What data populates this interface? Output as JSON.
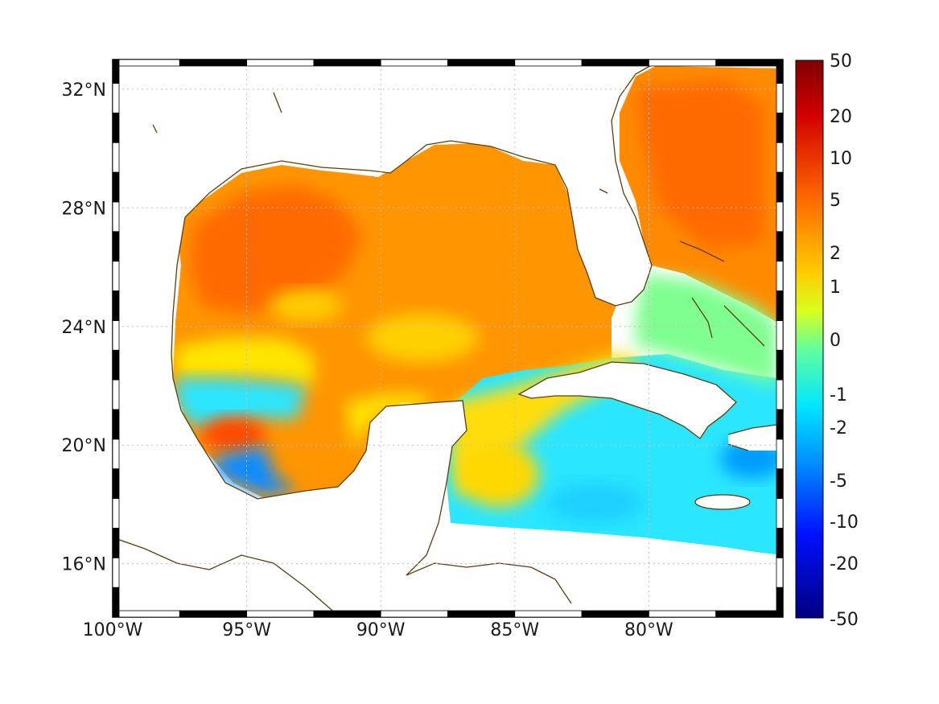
{
  "map": {
    "projection": "lon-lat",
    "lon_range": [
      -100,
      -75
    ],
    "lat_range": [
      14.2,
      33
    ],
    "x_ticks": [
      {
        "lon": -100,
        "label": "100°W"
      },
      {
        "lon": -95,
        "label": "95°W"
      },
      {
        "lon": -90,
        "label": "90°W"
      },
      {
        "lon": -85,
        "label": "85°W"
      },
      {
        "lon": -80,
        "label": "80°W"
      }
    ],
    "y_ticks": [
      {
        "lat": 32,
        "label": "32°N"
      },
      {
        "lat": 28,
        "label": "28°N"
      },
      {
        "lat": 24,
        "label": "24°N"
      },
      {
        "lat": 20,
        "label": "20°N"
      },
      {
        "lat": 16,
        "label": "16°N"
      }
    ],
    "grid": true,
    "frame_style": "alternating black-white border",
    "coastline_color": "#5c3d0e",
    "colormap": "jet"
  },
  "colorbar": {
    "placement": "right",
    "labels": [
      "50",
      "20",
      "10",
      "5",
      "2",
      "1",
      "0",
      "-1",
      "-2",
      "-5",
      "-10",
      "-20",
      "-50"
    ],
    "colors": [
      "#7f0000",
      "#d40000",
      "#ff2a00",
      "#ff7700",
      "#ffb800",
      "#ffe600",
      "#c6ff38",
      "#7fffb8",
      "#2ae6ff",
      "#009cff",
      "#0044ff",
      "#0000d4",
      "#00007f"
    ]
  },
  "field_regions": [
    {
      "name": "northwest-gulf",
      "value": 6
    },
    {
      "name": "central-gulf",
      "value": 3
    },
    {
      "name": "atlantic-florida",
      "value": 5
    },
    {
      "name": "bay-of-campeche",
      "value": -4
    },
    {
      "name": "caribbean-central",
      "value": -1.5
    },
    {
      "name": "caribbean-east",
      "value": -2.5
    }
  ]
}
